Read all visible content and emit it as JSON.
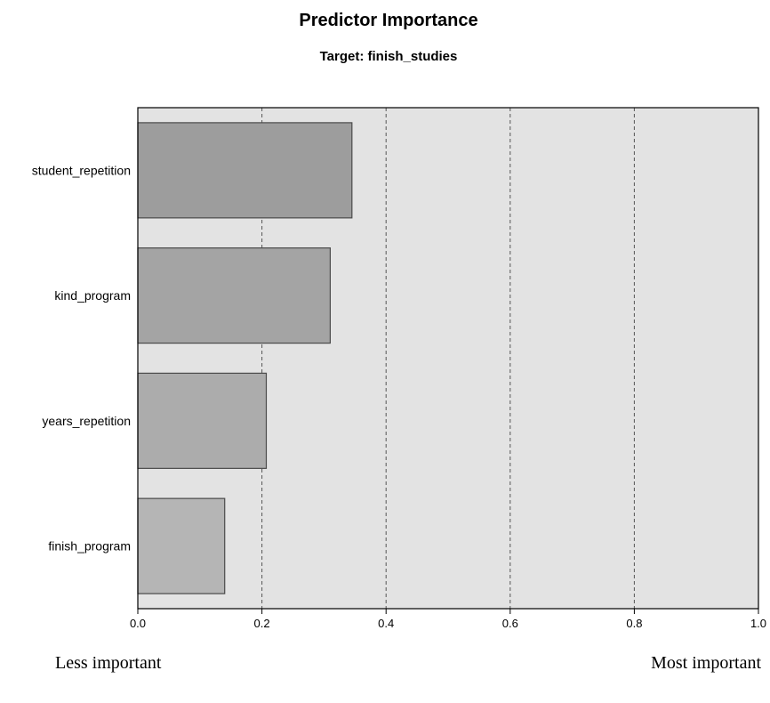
{
  "chart_data": {
    "type": "bar",
    "orientation": "horizontal",
    "title": "Predictor Importance",
    "subtitle": "Target: finish_studies",
    "categories": [
      "student_repetition",
      "kind_program",
      "years_repetition",
      "finish_program"
    ],
    "values": [
      0.345,
      0.31,
      0.207,
      0.14
    ],
    "xlim": [
      0,
      1
    ],
    "ticks": [
      "0.0",
      "0.2",
      "0.4",
      "0.6",
      "0.8",
      "1.0"
    ],
    "grid": "vertical dashed",
    "xlabel_left": "Less important",
    "xlabel_right": "Most important",
    "colors": {
      "plot_background": "#e3e3e3",
      "bars": [
        "#9d9d9d",
        "#a4a4a4",
        "#acacac",
        "#b5b5b5"
      ],
      "bar_stroke": "#4a4a4a",
      "grid": "#555555"
    }
  }
}
